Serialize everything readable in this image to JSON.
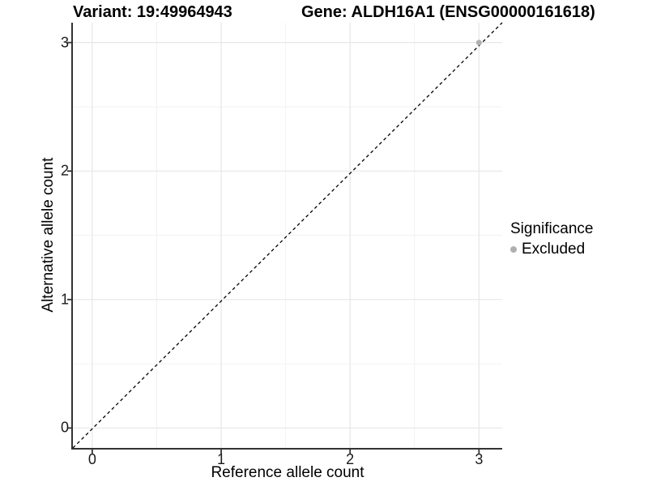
{
  "chart_data": {
    "type": "scatter",
    "title_left": "Variant: 19:49964943",
    "title_right": "Gene: ALDH16A1 (ENSG00000161618)",
    "xlabel": "Reference allele count",
    "ylabel": "Alternative allele count",
    "xlim": [
      -0.15,
      3.18
    ],
    "ylim": [
      -0.155,
      3.155
    ],
    "x_ticks": [
      0,
      1,
      2,
      3
    ],
    "y_ticks": [
      0,
      1,
      2,
      3
    ],
    "x_minor": [
      0.5,
      1.5,
      2.5
    ],
    "y_minor": [
      0.5,
      1.5,
      2.5
    ],
    "grid": "on",
    "series": [
      {
        "name": "Excluded",
        "color": "#b0b0b0",
        "point_radius": 3.5,
        "points": [
          [
            3,
            3
          ]
        ]
      }
    ],
    "reference_line": {
      "type": "identity y=x",
      "style": "dashed",
      "color": "#000000"
    },
    "legend": {
      "title": "Significance",
      "position": "right",
      "entries": [
        {
          "label": "Excluded",
          "color": "#b0b0b0"
        }
      ]
    },
    "colors": {
      "background": "#ffffff",
      "grid_major": "#e6e6e6",
      "grid_minor": "#f2f2f2",
      "axis": "#333333",
      "text": "#000000"
    }
  }
}
